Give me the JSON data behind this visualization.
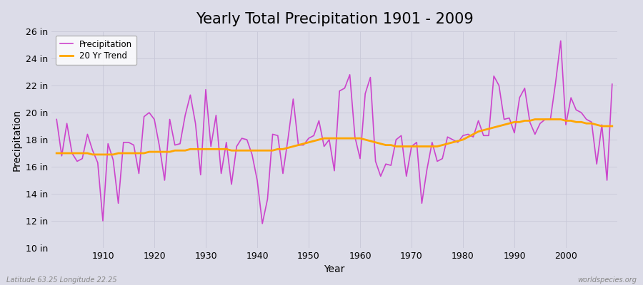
{
  "title": "Yearly Total Precipitation 1901 - 2009",
  "xlabel": "Year",
  "ylabel": "Precipitation",
  "lat_lon_label": "Latitude 63.25 Longitude 22.25",
  "source_label": "worldspecies.org",
  "precip_color": "#CC44CC",
  "trend_color": "#FFA500",
  "bg_color": "#DCDCE8",
  "plot_bg_color": "#DCDCE8",
  "years": [
    1901,
    1902,
    1903,
    1904,
    1905,
    1906,
    1907,
    1908,
    1909,
    1910,
    1911,
    1912,
    1913,
    1914,
    1915,
    1916,
    1917,
    1918,
    1919,
    1920,
    1921,
    1922,
    1923,
    1924,
    1925,
    1926,
    1927,
    1928,
    1929,
    1930,
    1931,
    1932,
    1933,
    1934,
    1935,
    1936,
    1937,
    1938,
    1939,
    1940,
    1941,
    1942,
    1943,
    1944,
    1945,
    1946,
    1947,
    1948,
    1949,
    1950,
    1951,
    1952,
    1953,
    1954,
    1955,
    1956,
    1957,
    1958,
    1959,
    1960,
    1961,
    1962,
    1963,
    1964,
    1965,
    1966,
    1967,
    1968,
    1969,
    1970,
    1971,
    1972,
    1973,
    1974,
    1975,
    1976,
    1977,
    1978,
    1979,
    1980,
    1981,
    1982,
    1983,
    1984,
    1985,
    1986,
    1987,
    1988,
    1989,
    1990,
    1991,
    1992,
    1993,
    1994,
    1995,
    1996,
    1997,
    1998,
    1999,
    2000,
    2001,
    2002,
    2003,
    2004,
    2005,
    2006,
    2007,
    2008,
    2009
  ],
  "precipitation": [
    19.5,
    16.8,
    19.2,
    17.0,
    16.4,
    16.6,
    18.4,
    17.2,
    16.3,
    12.0,
    17.7,
    16.5,
    13.3,
    17.8,
    17.8,
    17.6,
    15.5,
    19.7,
    20.0,
    19.5,
    17.5,
    15.0,
    19.5,
    17.6,
    17.7,
    19.8,
    21.3,
    19.2,
    15.4,
    21.7,
    17.5,
    19.8,
    15.5,
    17.8,
    14.7,
    17.5,
    18.1,
    18.0,
    16.9,
    15.0,
    11.8,
    13.6,
    18.4,
    18.3,
    15.5,
    18.1,
    21.0,
    17.6,
    17.6,
    18.1,
    18.3,
    19.4,
    17.5,
    18.0,
    15.7,
    21.6,
    21.8,
    22.8,
    18.2,
    16.6,
    21.4,
    22.6,
    16.4,
    15.3,
    16.2,
    16.1,
    18.0,
    18.3,
    15.3,
    17.5,
    17.8,
    13.3,
    15.8,
    17.8,
    16.4,
    16.6,
    18.2,
    18.0,
    17.8,
    18.3,
    18.4,
    18.2,
    19.4,
    18.3,
    18.3,
    22.7,
    22.0,
    19.5,
    19.6,
    18.5,
    21.1,
    21.8,
    19.3,
    18.4,
    19.2,
    19.5,
    19.5,
    22.2,
    25.3,
    19.1,
    21.1,
    20.2,
    20.0,
    19.5,
    19.3,
    16.2,
    19.1,
    15.0,
    22.1
  ],
  "trend": [
    17.0,
    17.0,
    17.0,
    17.0,
    17.0,
    17.0,
    17.0,
    16.9,
    16.9,
    16.9,
    16.9,
    16.9,
    17.0,
    17.0,
    17.0,
    17.0,
    17.0,
    17.0,
    17.1,
    17.1,
    17.1,
    17.1,
    17.1,
    17.2,
    17.2,
    17.2,
    17.3,
    17.3,
    17.3,
    17.3,
    17.3,
    17.3,
    17.3,
    17.3,
    17.2,
    17.2,
    17.2,
    17.2,
    17.2,
    17.2,
    17.2,
    17.2,
    17.2,
    17.3,
    17.3,
    17.4,
    17.5,
    17.6,
    17.7,
    17.8,
    17.9,
    18.0,
    18.1,
    18.1,
    18.1,
    18.1,
    18.1,
    18.1,
    18.1,
    18.1,
    18.0,
    17.9,
    17.8,
    17.7,
    17.6,
    17.6,
    17.5,
    17.5,
    17.5,
    17.5,
    17.5,
    17.5,
    17.5,
    17.5,
    17.5,
    17.6,
    17.7,
    17.8,
    17.9,
    18.0,
    18.2,
    18.4,
    18.6,
    18.7,
    18.8,
    18.9,
    19.0,
    19.1,
    19.2,
    19.3,
    19.3,
    19.4,
    19.4,
    19.5,
    19.5,
    19.5,
    19.5,
    19.5,
    19.5,
    19.4,
    19.4,
    19.3,
    19.3,
    19.2,
    19.2,
    19.1,
    19.0,
    19.0,
    19.0
  ],
  "ylim": [
    10,
    26
  ],
  "yticks": [
    10,
    12,
    14,
    16,
    18,
    20,
    22,
    24,
    26
  ],
  "ytick_labels": [
    "10 in",
    "12 in",
    "14 in",
    "16 in",
    "18 in",
    "20 in",
    "22 in",
    "24 in",
    "26 in"
  ],
  "xlim": [
    1900,
    2010
  ],
  "xticks": [
    1910,
    1920,
    1930,
    1940,
    1950,
    1960,
    1970,
    1980,
    1990,
    2000
  ],
  "legend_labels": [
    "Precipitation",
    "20 Yr Trend"
  ],
  "grid_color": "#C8C8D8",
  "title_fontsize": 15,
  "axis_label_fontsize": 10,
  "tick_fontsize": 9
}
